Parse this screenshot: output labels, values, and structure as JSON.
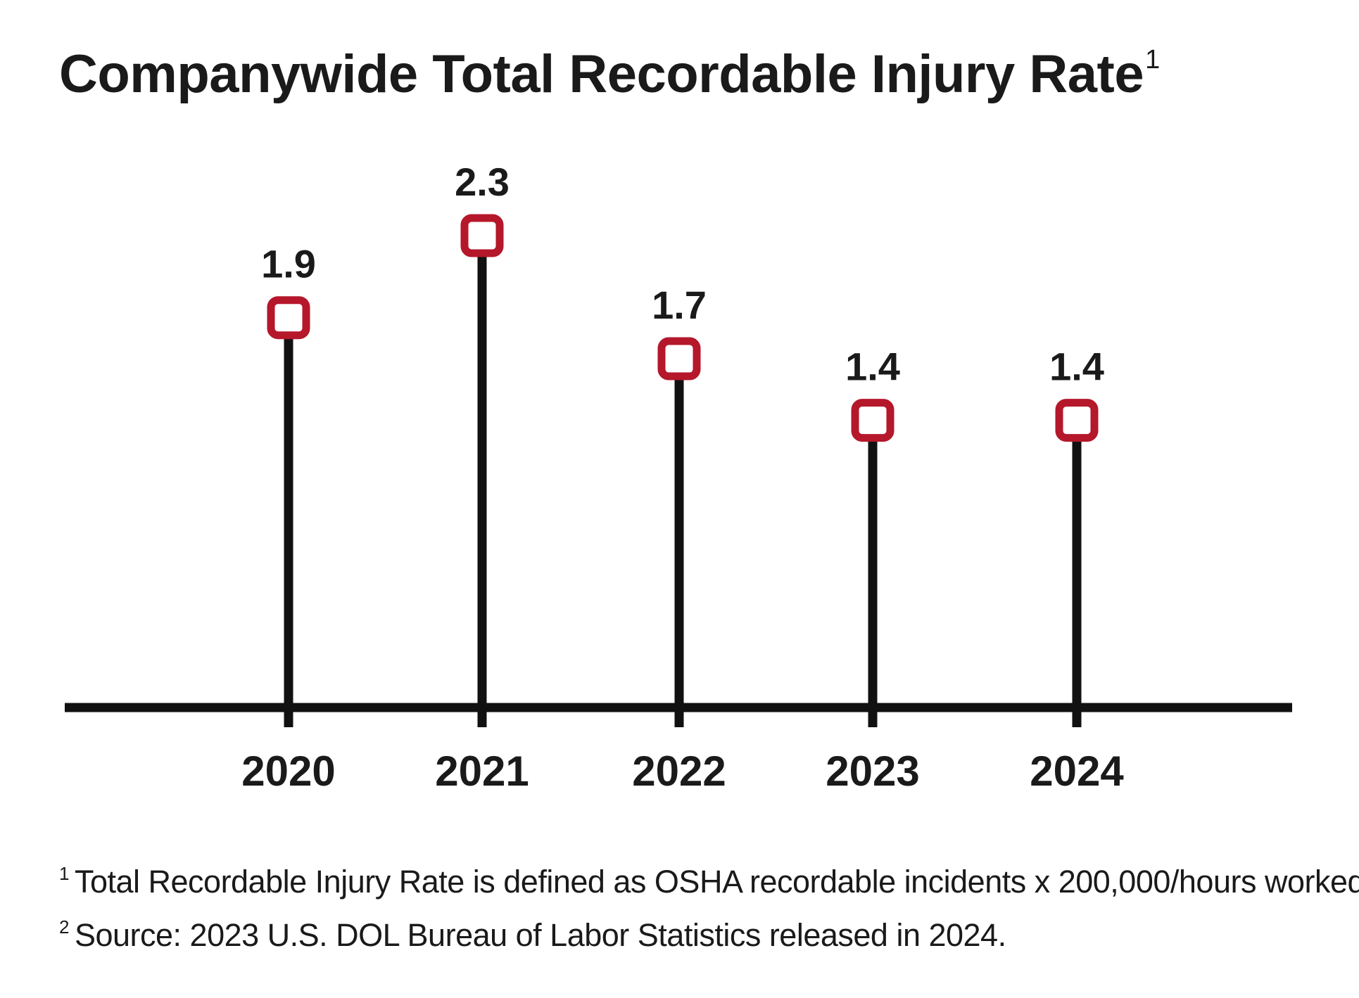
{
  "title": "Companywide Total Recordable Injury Rate",
  "title_superscript": "1",
  "colors": {
    "marker": "#b5172b",
    "stem": "#111111",
    "text": "#1a1a1a"
  },
  "chart_data": {
    "type": "lollipop",
    "categories": [
      "2020",
      "2021",
      "2022",
      "2023",
      "2024"
    ],
    "values": [
      1.9,
      2.3,
      1.7,
      1.4,
      1.4
    ],
    "data_labels": [
      "1.9",
      "2.3",
      "1.7",
      "1.4",
      "1.4"
    ],
    "title": "Companywide Total Recordable Injury Rate",
    "xlabel": "",
    "ylabel": "",
    "ylim": [
      0,
      2.3
    ],
    "grid": false
  },
  "footnotes": [
    {
      "mark": "1",
      "text": "Total Recordable Injury Rate is defined as OSHA recordable incidents x 200,000/hours worked."
    },
    {
      "mark": "2",
      "text": "Source: 2023 U.S. DOL Bureau of Labor Statistics released in 2024."
    }
  ]
}
